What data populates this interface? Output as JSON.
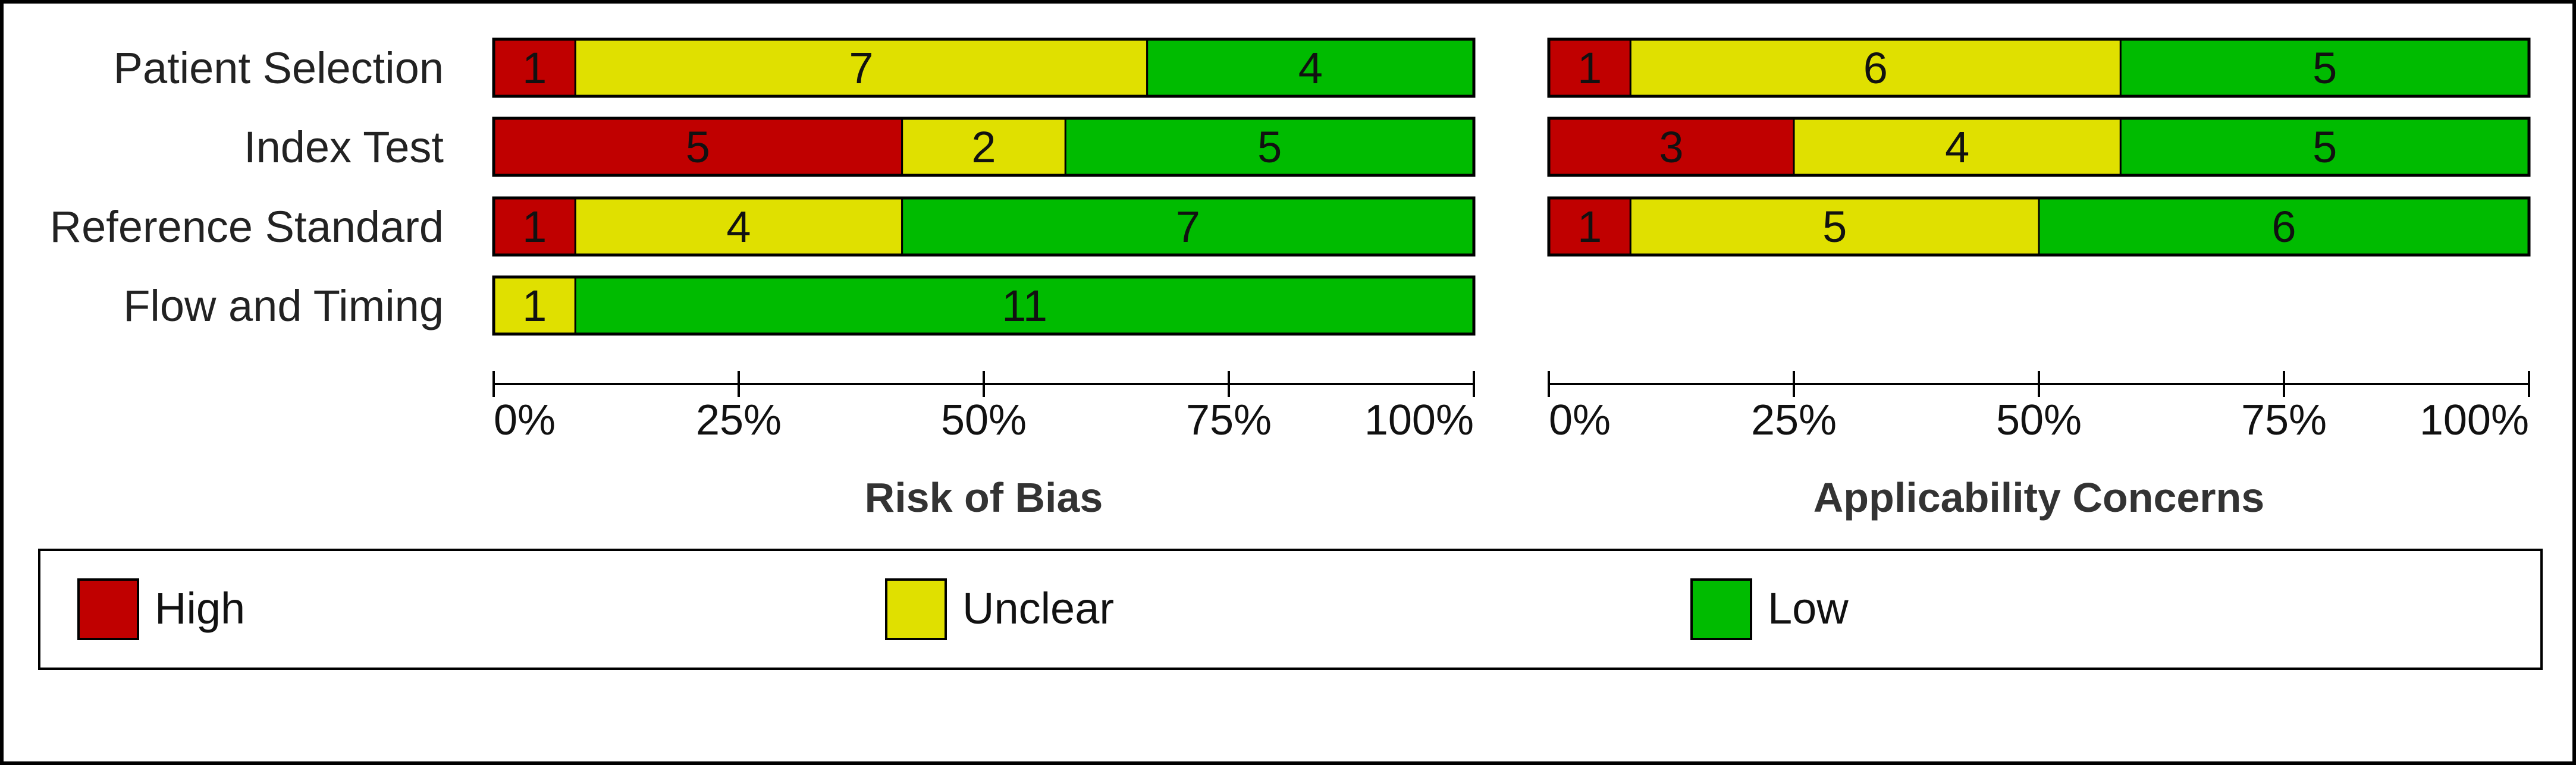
{
  "chart_data": {
    "type": "bar",
    "orientation": "horizontal",
    "stacked": true,
    "categories": [
      "High",
      "Unclear",
      "Low"
    ],
    "colors": {
      "High": "#c00000",
      "Unclear": "#e0e000",
      "Low": "#00bb00"
    },
    "ticks": [
      "0%",
      "25%",
      "50%",
      "75%",
      "100%"
    ],
    "xlim": [
      0,
      100
    ],
    "panels": [
      {
        "title": "Risk of Bias",
        "rows": [
          {
            "label": "Patient Selection",
            "values": [
              1,
              7,
              4
            ]
          },
          {
            "label": "Index Test",
            "values": [
              5,
              2,
              5
            ]
          },
          {
            "label": "Reference Standard",
            "values": [
              1,
              4,
              7
            ]
          },
          {
            "label": "Flow and Timing",
            "values": [
              0,
              1,
              11
            ]
          }
        ]
      },
      {
        "title": "Applicability Concerns",
        "rows": [
          {
            "label": "Patient Selection",
            "values": [
              1,
              6,
              5
            ]
          },
          {
            "label": "Index Test",
            "values": [
              3,
              4,
              5
            ]
          },
          {
            "label": "Reference Standard",
            "values": [
              1,
              5,
              6
            ]
          }
        ]
      }
    ],
    "legend": {
      "position": "bottom",
      "items": [
        {
          "label": "High",
          "color": "#c00000"
        },
        {
          "label": "Unclear",
          "color": "#e0e000"
        },
        {
          "label": "Low",
          "color": "#00bb00"
        }
      ]
    }
  }
}
